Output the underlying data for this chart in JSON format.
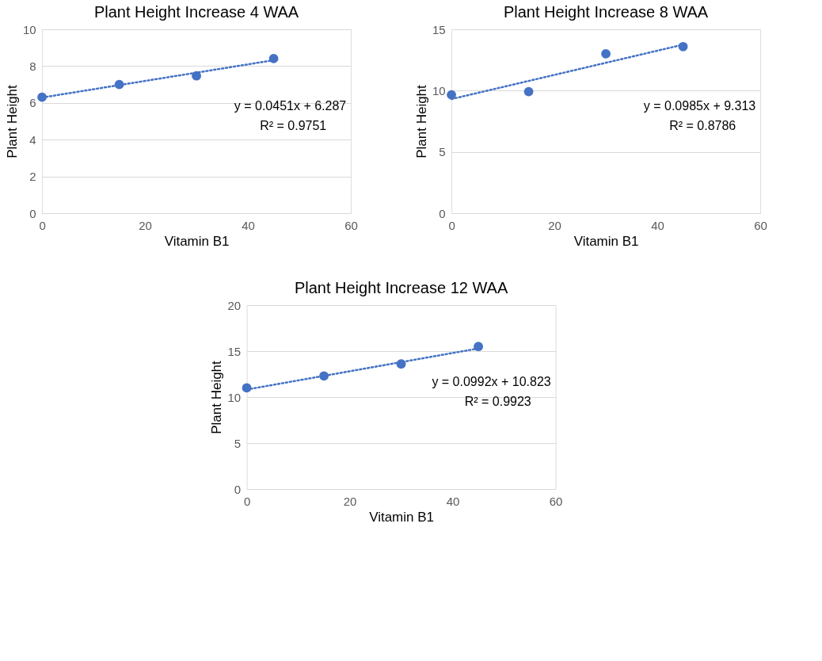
{
  "chart_data": [
    {
      "type": "scatter",
      "title": "Plant Height Increase 4 WAA",
      "xlabel": "Vitamin B1",
      "ylabel": "Plant Height",
      "xlim": [
        0,
        60
      ],
      "xticks": [
        0,
        20,
        40,
        60
      ],
      "ylim": [
        0,
        10
      ],
      "yticks": [
        0,
        2,
        4,
        6,
        8,
        10
      ],
      "grid": "y",
      "marker": "circle",
      "series": [
        {
          "color": "#4472c4",
          "x": [
            0,
            15,
            30,
            45
          ],
          "values": [
            6.31,
            7.0,
            7.47,
            8.41
          ]
        },
        {
          "type": "line",
          "color": "#4472c4",
          "line_style": "dotted",
          "marker": "none",
          "x": [
            0,
            45
          ],
          "values": [
            6.29,
            8.32
          ]
        }
      ],
      "annotations": [
        "y = 0.0451x + 6.287",
        "R² = 0.9751"
      ]
    },
    {
      "type": "scatter",
      "title": "Plant Height Increase 8 WAA",
      "xlabel": "Vitamin B1",
      "ylabel": "Plant Height",
      "xlim": [
        0,
        60
      ],
      "xticks": [
        0,
        20,
        40,
        60
      ],
      "ylim": [
        0,
        15
      ],
      "yticks": [
        0,
        5,
        10,
        15
      ],
      "grid": "y",
      "marker": "circle",
      "series": [
        {
          "color": "#4472c4",
          "x": [
            0,
            15,
            30,
            45
          ],
          "values": [
            9.66,
            9.92,
            13.0,
            13.59
          ]
        },
        {
          "type": "line",
          "color": "#4472c4",
          "line_style": "dotted",
          "marker": "none",
          "x": [
            0,
            45
          ],
          "values": [
            9.31,
            13.75
          ]
        }
      ],
      "annotations": [
        "y = 0.0985x + 9.313",
        "R² = 0.8786"
      ]
    },
    {
      "type": "scatter",
      "title": "Plant Height Increase 12 WAA",
      "xlabel": "Vitamin B1",
      "ylabel": "Plant Height",
      "xlim": [
        0,
        60
      ],
      "xticks": [
        0,
        20,
        40,
        60
      ],
      "ylim": [
        0,
        20
      ],
      "yticks": [
        0,
        5,
        10,
        15,
        20
      ],
      "grid": "y",
      "marker": "circle",
      "series": [
        {
          "color": "#4472c4",
          "x": [
            0,
            15,
            30,
            45
          ],
          "values": [
            11.0,
            12.3,
            13.6,
            15.5
          ]
        },
        {
          "type": "line",
          "color": "#4472c4",
          "line_style": "dotted",
          "marker": "none",
          "x": [
            0,
            45
          ],
          "values": [
            10.82,
            15.29
          ]
        }
      ],
      "annotations": [
        "y = 0.0992x + 10.823",
        "R² = 0.9923"
      ]
    }
  ]
}
